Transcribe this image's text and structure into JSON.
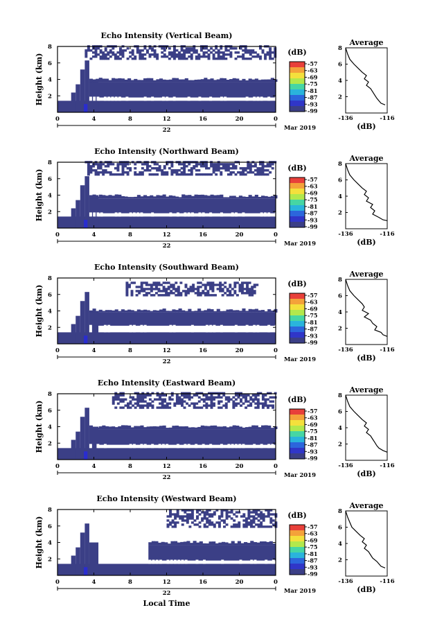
{
  "colors": {
    "echo_fill": "#3b3f86",
    "echo_core": "#2a2dd0",
    "frame": "#000000"
  },
  "colorbar": {
    "unit": "(dB)",
    "labels": [
      "-57",
      "-63",
      "-69",
      "-75",
      "-81",
      "-87",
      "-93",
      "-99"
    ],
    "colors": [
      "#e8403a",
      "#f4a23a",
      "#f4e03c",
      "#b2e84c",
      "#46d6a4",
      "#2ab4dc",
      "#2c66dc",
      "#3036c8",
      "#3b3f86"
    ]
  },
  "main_axes": {
    "ylabel": "Height (km)",
    "yticks": [
      "8",
      "6",
      "4",
      "2"
    ],
    "xticks": [
      "0",
      "4",
      "8",
      "12",
      "16",
      "20",
      "0"
    ],
    "date_label": "22",
    "month_label": "Mar 2019",
    "xlabel": "Local Time"
  },
  "side_axes": {
    "title": "Average",
    "yticks": [
      "8",
      "6",
      "4",
      "2"
    ],
    "xticks": [
      "-136",
      "-116"
    ],
    "xlabel": "(dB)"
  },
  "chart_data": [
    {
      "type": "heatmap",
      "title": "Echo Intensity (Vertical Beam)",
      "x_range_hours": [
        0,
        24
      ],
      "ylim_km": [
        0,
        8
      ],
      "layers": [
        {
          "name": "lower echo layer",
          "t_start": 3.5,
          "t_end": 24,
          "bottom_km": 1.8,
          "top_km": 3.7
        },
        {
          "name": "upper scattered echoes",
          "t_start": 3,
          "t_end": 24,
          "bottom_km": 6.4,
          "top_km": 8
        }
      ],
      "average_profile": {
        "xlim": [
          -136,
          -116
        ],
        "height_km": [
          8.0,
          7.2,
          6.6,
          6.0,
          5.5,
          5.0,
          4.6,
          4.2,
          3.8,
          3.4,
          3.0,
          2.6,
          2.2,
          1.8,
          1.5,
          1.2,
          1.0
        ],
        "db": [
          -136,
          -135,
          -134,
          -132,
          -130,
          -128,
          -126,
          -127,
          -125,
          -126,
          -124,
          -123,
          -122,
          -121,
          -120,
          -119,
          -117
        ]
      }
    },
    {
      "type": "heatmap",
      "title": "Echo Intensity (Northward Beam)",
      "x_range_hours": [
        0,
        24
      ],
      "ylim_km": [
        0,
        8
      ],
      "layers": [
        {
          "name": "lower echo layer",
          "t_start": 3.5,
          "t_end": 24,
          "bottom_km": 1.8,
          "top_km": 3.6
        },
        {
          "name": "upper scattered echoes",
          "t_start": 3,
          "t_end": 24,
          "bottom_km": 6.4,
          "top_km": 8
        }
      ],
      "average_profile": {
        "xlim": [
          -136,
          -116
        ],
        "height_km": [
          8.0,
          7.2,
          6.6,
          6.0,
          5.5,
          5.0,
          4.6,
          4.2,
          3.8,
          3.4,
          3.0,
          2.6,
          2.2,
          1.8,
          1.4,
          1.1,
          1.0
        ],
        "db": [
          -136,
          -135,
          -134,
          -132,
          -130,
          -128,
          -126,
          -127,
          -125,
          -126,
          -123,
          -124,
          -122,
          -123,
          -120,
          -118,
          -116
        ]
      }
    },
    {
      "type": "heatmap",
      "title": "Echo Intensity (Southward Beam)",
      "x_range_hours": [
        0,
        24
      ],
      "ylim_km": [
        0,
        8
      ],
      "layers": [
        {
          "name": "lower echo layer",
          "t_start": 3.5,
          "t_end": 24,
          "bottom_km": 2.2,
          "top_km": 3.8
        },
        {
          "name": "upper scattered echoes",
          "t_start": 7.5,
          "t_end": 22,
          "bottom_km": 5.8,
          "top_km": 7.5
        }
      ],
      "average_profile": {
        "xlim": [
          -136,
          -116
        ],
        "height_km": [
          8.0,
          7.2,
          6.6,
          6.0,
          5.5,
          5.0,
          4.6,
          4.2,
          3.8,
          3.4,
          3.0,
          2.6,
          2.2,
          1.8,
          1.5,
          1.2,
          1.0
        ],
        "db": [
          -136,
          -135,
          -134,
          -132,
          -130,
          -128,
          -127,
          -128,
          -125,
          -127,
          -124,
          -123,
          -121,
          -122,
          -119,
          -118,
          -116
        ]
      }
    },
    {
      "type": "heatmap",
      "title": "Echo Intensity (Eastward Beam)",
      "x_range_hours": [
        0,
        24
      ],
      "ylim_km": [
        0,
        8
      ],
      "layers": [
        {
          "name": "lower echo layer",
          "t_start": 3.5,
          "t_end": 24,
          "bottom_km": 1.8,
          "top_km": 3.7
        },
        {
          "name": "upper scattered echoes",
          "t_start": 6,
          "t_end": 24,
          "bottom_km": 6.2,
          "top_km": 8
        }
      ],
      "average_profile": {
        "xlim": [
          -136,
          -116
        ],
        "height_km": [
          8.0,
          7.2,
          6.6,
          6.0,
          5.5,
          5.0,
          4.6,
          4.2,
          3.8,
          3.4,
          3.0,
          2.6,
          2.2,
          1.8,
          1.5,
          1.2,
          1.0
        ],
        "db": [
          -136,
          -135,
          -134,
          -132,
          -130,
          -128,
          -126,
          -127,
          -125,
          -126,
          -124,
          -123,
          -122,
          -121,
          -120,
          -118,
          -116
        ]
      }
    },
    {
      "type": "heatmap",
      "title": "Echo Intensity (Westward Beam)",
      "x_range_hours": [
        0,
        24
      ],
      "ylim_km": [
        0,
        8
      ],
      "layers": [
        {
          "name": "lower echo layer",
          "t_start": 10,
          "t_end": 24,
          "bottom_km": 1.8,
          "top_km": 3.7
        },
        {
          "name": "upper scattered echoes",
          "t_start": 12,
          "t_end": 24,
          "bottom_km": 5.8,
          "top_km": 8
        }
      ],
      "average_profile": {
        "xlim": [
          -136,
          -116
        ],
        "height_km": [
          8.0,
          7.2,
          6.6,
          6.0,
          5.5,
          5.0,
          4.6,
          4.2,
          3.8,
          3.4,
          3.0,
          2.6,
          2.2,
          1.8,
          1.5,
          1.2,
          1.0
        ],
        "db": [
          -136,
          -135,
          -134,
          -133,
          -131,
          -129,
          -127,
          -128,
          -126,
          -127,
          -125,
          -124,
          -123,
          -121,
          -120,
          -119,
          -117
        ]
      }
    }
  ]
}
